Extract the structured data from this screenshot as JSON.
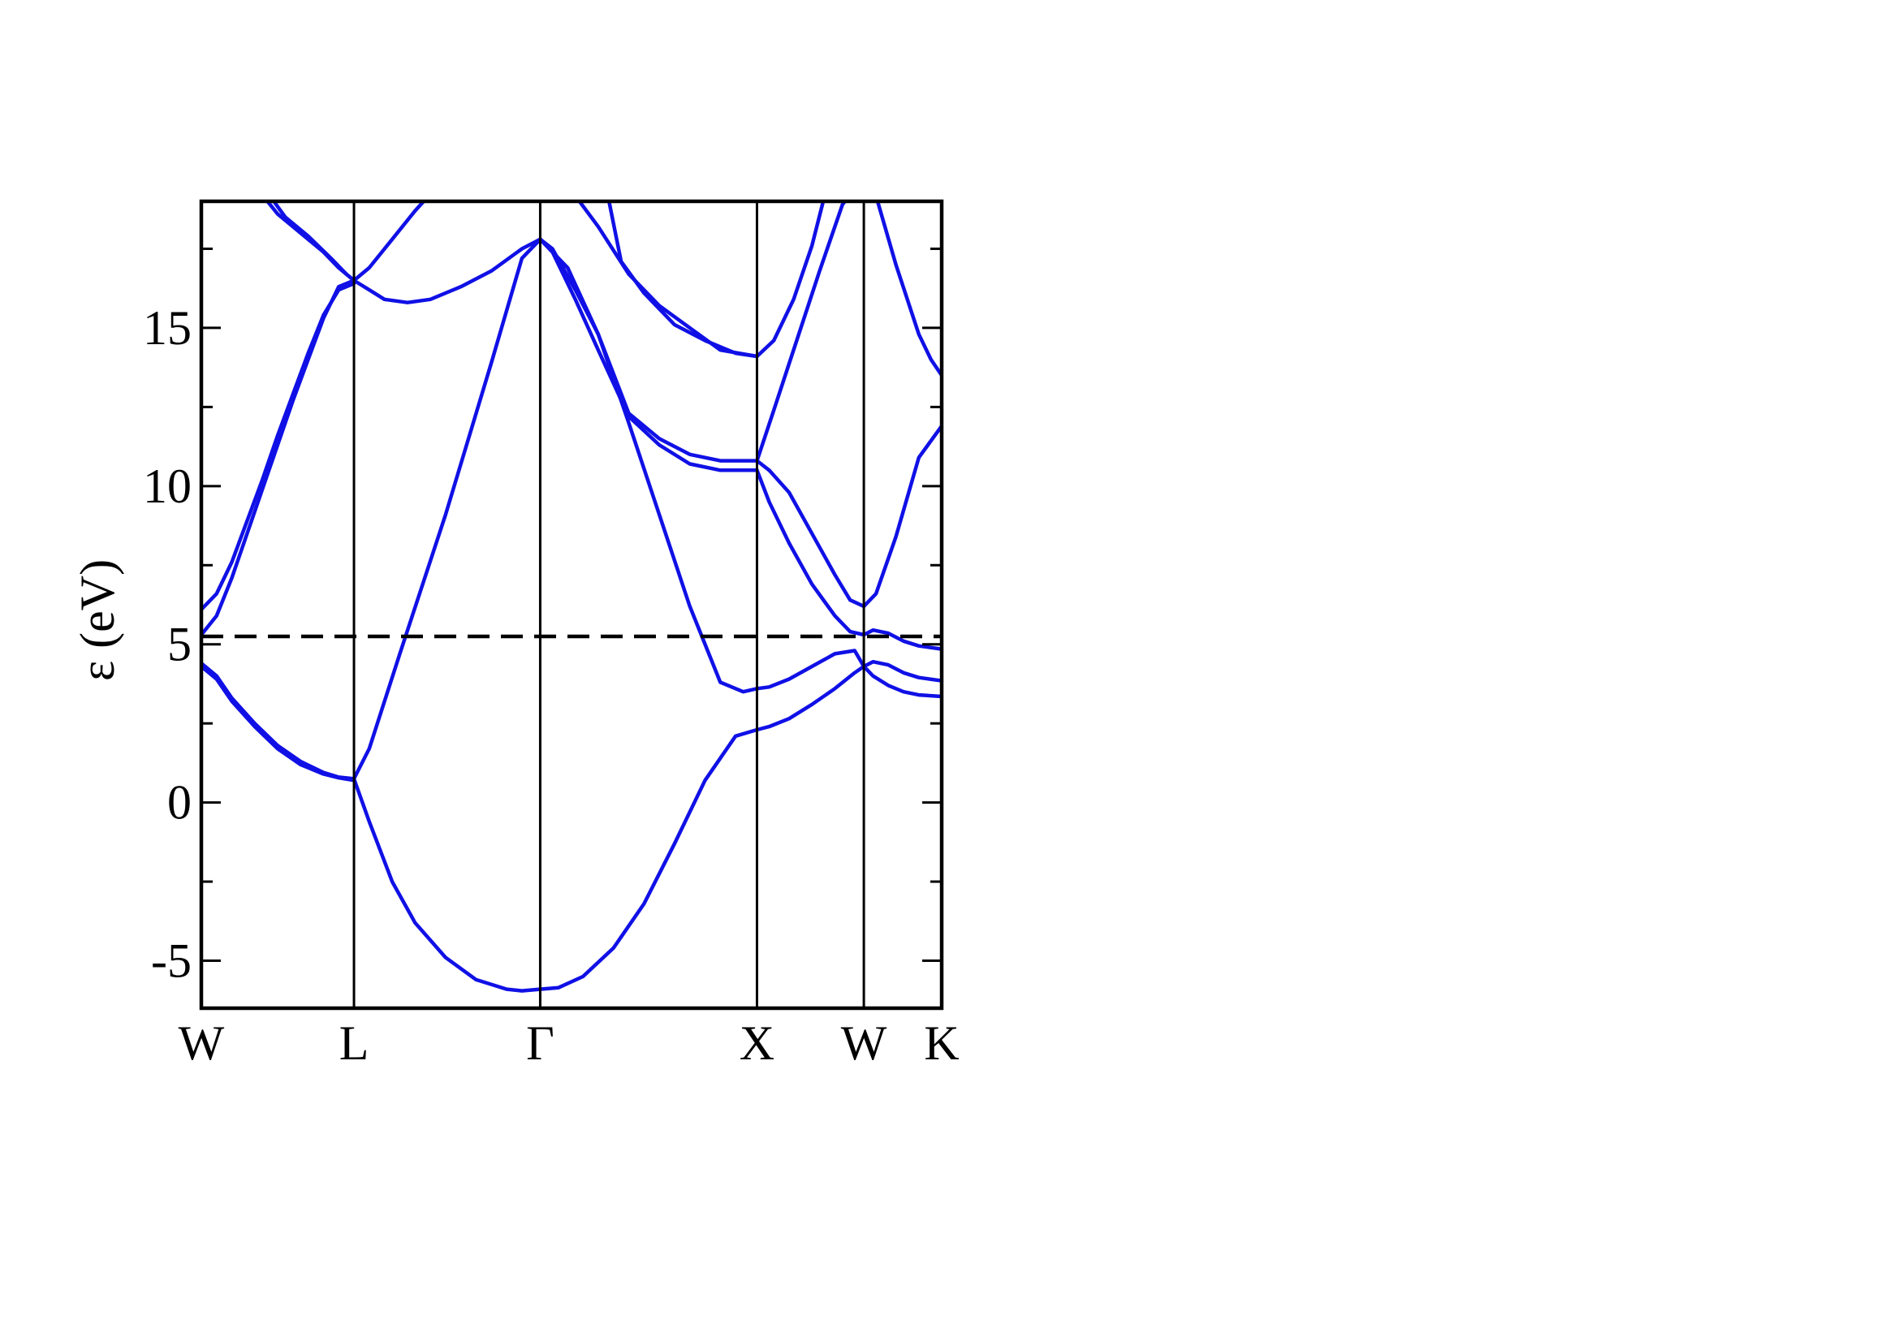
{
  "chart_data": {
    "type": "line",
    "title": "",
    "ylabel": "ε (eV)",
    "xlabel": "",
    "ylim": [
      -6.5,
      19
    ],
    "yticks": [
      -5,
      0,
      5,
      10,
      15
    ],
    "ytick_labels": [
      "-5",
      "0",
      "5",
      "10",
      "15"
    ],
    "x_range": [
      0,
      4.85
    ],
    "kpoints": [
      {
        "label": "W",
        "x": 0
      },
      {
        "label": "L",
        "x": 1.0
      },
      {
        "label": "Γ",
        "x": 2.22
      },
      {
        "label": "X",
        "x": 3.64
      },
      {
        "label": "W",
        "x": 4.34
      },
      {
        "label": "K",
        "x": 4.85
      }
    ],
    "fermi_level": 5.25,
    "grid": false,
    "band_color": "#1010e6",
    "series": [
      {
        "x": [
          0,
          0.1,
          0.2,
          0.35,
          0.5,
          0.65,
          0.8,
          0.9,
          1.0
        ],
        "values": [
          4.4,
          4.0,
          3.3,
          2.5,
          1.8,
          1.3,
          0.95,
          0.8,
          0.75
        ]
      },
      {
        "x": [
          0,
          0.1,
          0.2,
          0.35,
          0.5,
          0.65,
          0.8,
          0.9,
          1.0
        ],
        "values": [
          4.3,
          3.9,
          3.2,
          2.4,
          1.7,
          1.2,
          0.9,
          0.78,
          0.7
        ]
      },
      {
        "x": [
          0,
          0.1,
          0.2,
          0.3,
          0.4,
          0.5,
          0.6,
          0.7,
          0.8,
          0.9,
          1.0
        ],
        "values": [
          5.3,
          5.9,
          7.1,
          8.5,
          9.9,
          11.3,
          12.7,
          14.0,
          15.3,
          16.3,
          16.5
        ]
      },
      {
        "x": [
          0,
          0.1,
          0.2,
          0.3,
          0.4,
          0.5,
          0.6,
          0.7,
          0.8,
          0.9,
          1.0
        ],
        "values": [
          6.1,
          6.6,
          7.6,
          8.9,
          10.2,
          11.6,
          12.9,
          14.2,
          15.4,
          16.2,
          16.4
        ]
      },
      {
        "x": [
          0.35,
          0.5,
          0.65,
          0.8,
          0.9,
          1.0
        ],
        "values": [
          19.5,
          18.6,
          18.0,
          17.4,
          16.9,
          16.5
        ]
      },
      {
        "x": [
          0.4,
          0.55,
          0.7,
          0.85,
          0.95,
          1.0
        ],
        "values": [
          19.5,
          18.5,
          17.9,
          17.2,
          16.7,
          16.5
        ]
      },
      {
        "x": [
          1.0,
          1.1,
          1.25,
          1.4,
          1.6,
          1.8,
          2.0,
          2.1,
          2.22
        ],
        "values": [
          0.75,
          -0.6,
          -2.5,
          -3.8,
          -4.9,
          -5.6,
          -5.9,
          -5.95,
          -5.9
        ]
      },
      {
        "x": [
          2.22,
          2.34,
          2.5,
          2.7,
          2.9,
          3.1,
          3.3,
          3.5,
          3.64
        ],
        "values": [
          -5.9,
          -5.85,
          -5.5,
          -4.6,
          -3.2,
          -1.3,
          0.7,
          2.1,
          2.3
        ]
      },
      {
        "x": [
          1.0,
          1.1,
          1.3,
          1.6,
          1.9,
          2.1,
          2.22
        ],
        "values": [
          0.75,
          1.7,
          4.7,
          9.1,
          13.9,
          17.2,
          17.8
        ]
      },
      {
        "x": [
          2.22,
          2.4,
          2.6,
          2.8,
          3.0,
          3.2,
          3.4,
          3.55,
          3.64
        ],
        "values": [
          17.8,
          16.9,
          14.8,
          12.0,
          9.1,
          6.2,
          3.8,
          3.5,
          3.6
        ]
      },
      {
        "x": [
          1.0,
          1.1,
          1.2,
          1.35,
          1.5,
          1.7,
          1.9,
          2.1,
          2.22
        ],
        "values": [
          16.5,
          16.2,
          15.9,
          15.8,
          15.9,
          16.3,
          16.8,
          17.5,
          17.8
        ]
      },
      {
        "x": [
          1.0,
          1.1,
          1.25,
          1.4,
          1.55
        ],
        "values": [
          16.5,
          16.9,
          17.8,
          18.7,
          19.5
        ]
      },
      {
        "x": [
          2.22,
          2.3,
          2.45,
          2.6,
          2.8,
          3.0,
          3.2,
          3.4,
          3.64
        ],
        "values": [
          17.8,
          17.4,
          15.9,
          14.3,
          12.2,
          11.3,
          10.7,
          10.5,
          10.5
        ]
      },
      {
        "x": [
          2.22,
          2.3,
          2.45,
          2.6,
          2.8,
          3.0,
          3.2,
          3.4,
          3.64
        ],
        "values": [
          17.8,
          17.5,
          16.2,
          14.8,
          12.3,
          11.5,
          11.0,
          10.8,
          10.8
        ]
      },
      {
        "x": [
          2.4,
          2.6,
          2.8,
          3.0,
          3.2,
          3.4,
          3.64
        ],
        "values": [
          19.5,
          18.2,
          16.7,
          15.7,
          15.0,
          14.3,
          14.1
        ]
      },
      {
        "x": [
          2.65,
          2.75,
          2.9,
          3.1,
          3.3,
          3.5,
          3.64
        ],
        "values": [
          19.5,
          17.1,
          16.1,
          15.1,
          14.6,
          14.2,
          14.1
        ]
      },
      {
        "x": [
          3.64,
          3.72,
          3.85,
          4.0,
          4.15,
          4.28,
          4.34
        ],
        "values": [
          3.6,
          3.65,
          3.9,
          4.3,
          4.7,
          4.8,
          4.3
        ]
      },
      {
        "x": [
          3.64,
          3.72,
          3.85,
          4.0,
          4.15,
          4.28,
          4.34
        ],
        "values": [
          2.3,
          2.4,
          2.65,
          3.1,
          3.6,
          4.1,
          4.3
        ]
      },
      {
        "x": [
          3.64,
          3.72,
          3.85,
          4.0,
          4.15,
          4.25,
          4.34
        ],
        "values": [
          10.5,
          9.5,
          8.2,
          6.9,
          5.9,
          5.4,
          5.3
        ]
      },
      {
        "x": [
          3.64,
          3.72,
          3.85,
          4.0,
          4.15,
          4.25,
          4.34
        ],
        "values": [
          10.8,
          10.5,
          9.8,
          8.5,
          7.2,
          6.4,
          6.2
        ]
      },
      {
        "x": [
          3.64,
          3.75,
          3.9,
          4.05,
          4.2,
          4.3
        ],
        "values": [
          10.8,
          12.4,
          14.6,
          16.8,
          18.9,
          19.5
        ]
      },
      {
        "x": [
          3.64,
          3.75,
          3.88,
          4.0,
          4.1
        ],
        "values": [
          14.1,
          14.6,
          15.9,
          17.6,
          19.5
        ]
      },
      {
        "x": [
          4.34,
          4.4,
          4.5,
          4.6,
          4.7,
          4.85
        ],
        "values": [
          5.3,
          5.45,
          5.35,
          5.1,
          4.95,
          4.85
        ]
      },
      {
        "x": [
          4.34,
          4.4,
          4.5,
          4.6,
          4.7,
          4.85
        ],
        "values": [
          4.3,
          4.45,
          4.35,
          4.1,
          3.95,
          3.85
        ]
      },
      {
        "x": [
          4.34,
          4.4,
          4.5,
          4.6,
          4.7,
          4.85
        ],
        "values": [
          4.3,
          4.0,
          3.7,
          3.5,
          3.4,
          3.35
        ]
      },
      {
        "x": [
          4.34,
          4.42,
          4.55,
          4.7,
          4.85
        ],
        "values": [
          6.2,
          6.6,
          8.4,
          10.9,
          11.9
        ]
      },
      {
        "x": [
          4.4,
          4.55,
          4.7,
          4.78,
          4.85
        ],
        "values": [
          19.5,
          17.0,
          14.8,
          14.0,
          13.5
        ]
      }
    ]
  }
}
